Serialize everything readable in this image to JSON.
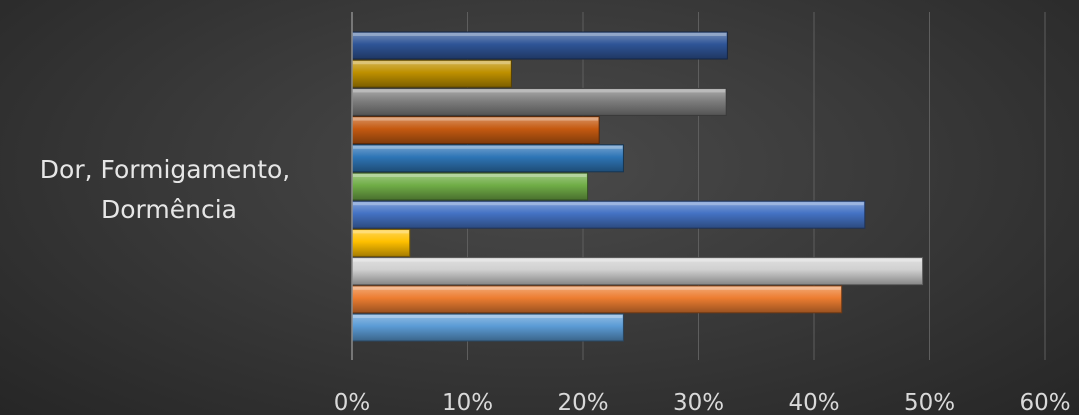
{
  "chart_data": {
    "type": "bar",
    "orientation": "horizontal",
    "category_label_lines": [
      "Dor, Formigamento,",
      "Dormência"
    ],
    "categories": [
      "Dor, Formigamento, Dormência"
    ],
    "series": [
      {
        "values": [
          0.325
        ],
        "color": "#2f5597"
      },
      {
        "values": [
          0.138
        ],
        "color": "#bf9000"
      },
      {
        "values": [
          0.324
        ],
        "color": "#7f7f7f"
      },
      {
        "values": [
          0.214
        ],
        "color": "#c55a11"
      },
      {
        "values": [
          0.235
        ],
        "color": "#2e75b6"
      },
      {
        "values": [
          0.204
        ],
        "color": "#70ad47"
      },
      {
        "values": [
          0.444
        ],
        "color": "#4472c4"
      },
      {
        "values": [
          0.05
        ],
        "color": "#ffc000"
      },
      {
        "values": [
          0.494
        ],
        "color": "#d0d0d0"
      },
      {
        "values": [
          0.424
        ],
        "color": "#ed7d31"
      },
      {
        "values": [
          0.235
        ],
        "color": "#5b9bd5"
      }
    ],
    "xlim": [
      0,
      0.6
    ],
    "x_ticks": [
      "0%",
      "10%",
      "20%",
      "30%",
      "40%",
      "50%",
      "60%"
    ],
    "grid": true,
    "legend": "none"
  }
}
